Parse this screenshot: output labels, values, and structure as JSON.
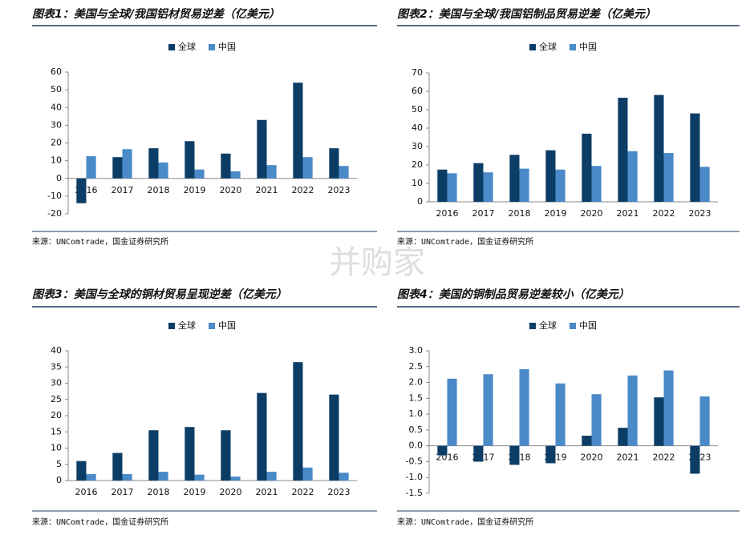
{
  "watermark": "并购家",
  "chart_data": [
    {
      "type": "bar",
      "title": "图表1：美国与全球/我国铝材贸易逆差（亿美元）",
      "source": "来源：UNComtrade，国金证券研究所",
      "categories": [
        "2016",
        "2017",
        "2018",
        "2019",
        "2020",
        "2021",
        "2022",
        "2023"
      ],
      "series": [
        {
          "name": "全球",
          "color": "#0b3d66",
          "values": [
            -14,
            12,
            17,
            21,
            14,
            33,
            54,
            17
          ]
        },
        {
          "name": "中国",
          "color": "#4a8ac8",
          "values": [
            12.5,
            16.5,
            9,
            5,
            4,
            7.5,
            12,
            7
          ]
        }
      ],
      "ylim": [
        -20,
        60
      ],
      "yticks": [
        -20,
        -10,
        0,
        10,
        20,
        30,
        40,
        50,
        60
      ]
    },
    {
      "type": "bar",
      "title": "图表2：美国与全球/我国铝制品贸易逆差（亿美元）",
      "source": "来源：UNComtrade，国金证券研究所",
      "categories": [
        "2016",
        "2017",
        "2018",
        "2019",
        "2020",
        "2021",
        "2022",
        "2023"
      ],
      "series": [
        {
          "name": "全球",
          "color": "#0b3d66",
          "values": [
            17.5,
            21,
            25.5,
            28,
            37,
            56.5,
            58,
            48
          ]
        },
        {
          "name": "中国",
          "color": "#4a8ac8",
          "values": [
            15.5,
            16,
            18,
            17.5,
            19.5,
            27.5,
            26.5,
            19
          ]
        }
      ],
      "ylim": [
        0,
        70
      ],
      "yticks": [
        0,
        10,
        20,
        30,
        40,
        50,
        60,
        70
      ]
    },
    {
      "type": "bar",
      "title": "图表3：美国与全球的铜材贸易呈现逆差（亿美元）",
      "source": "来源：UNComtrade，国金证券研究所",
      "categories": [
        "2016",
        "2017",
        "2018",
        "2019",
        "2020",
        "2021",
        "2022",
        "2023"
      ],
      "series": [
        {
          "name": "全球",
          "color": "#0b3d66",
          "values": [
            6,
            8.5,
            15.5,
            16.5,
            15.5,
            27,
            36.5,
            26.5
          ]
        },
        {
          "name": "中国",
          "color": "#4a8ac8",
          "values": [
            2,
            2,
            2.7,
            1.8,
            1.2,
            2.7,
            4,
            2.4
          ]
        }
      ],
      "ylim": [
        0,
        40
      ],
      "yticks": [
        0,
        5,
        10,
        15,
        20,
        25,
        30,
        35,
        40
      ]
    },
    {
      "type": "bar",
      "title": "图表4：美国的铜制品贸易逆差较小（亿美元）",
      "source": "来源：UNComtrade，国金证券研究所",
      "categories": [
        "2016",
        "2017",
        "2018",
        "2019",
        "2020",
        "2021",
        "2022",
        "2023"
      ],
      "series": [
        {
          "name": "全球",
          "color": "#0b3d66",
          "values": [
            -0.3,
            -0.5,
            -0.6,
            -0.55,
            0.32,
            0.57,
            1.53,
            -0.88
          ]
        },
        {
          "name": "中国",
          "color": "#4a8ac8",
          "values": [
            2.12,
            2.26,
            2.42,
            1.97,
            1.63,
            2.22,
            2.38,
            1.56
          ]
        }
      ],
      "ylim": [
        -1.5,
        3
      ],
      "yticks": [
        {
          "value": -1.5,
          "label": "-1.5"
        },
        {
          "value": -1,
          "label": "-1.0"
        },
        -0.5,
        {
          "value": 0,
          "label": "0.0"
        },
        0.5,
        {
          "value": 1,
          "label": "1.0"
        },
        1.5,
        {
          "value": 2,
          "label": "2.0"
        },
        2.5,
        {
          "value": 3,
          "label": "3.0"
        }
      ]
    }
  ]
}
